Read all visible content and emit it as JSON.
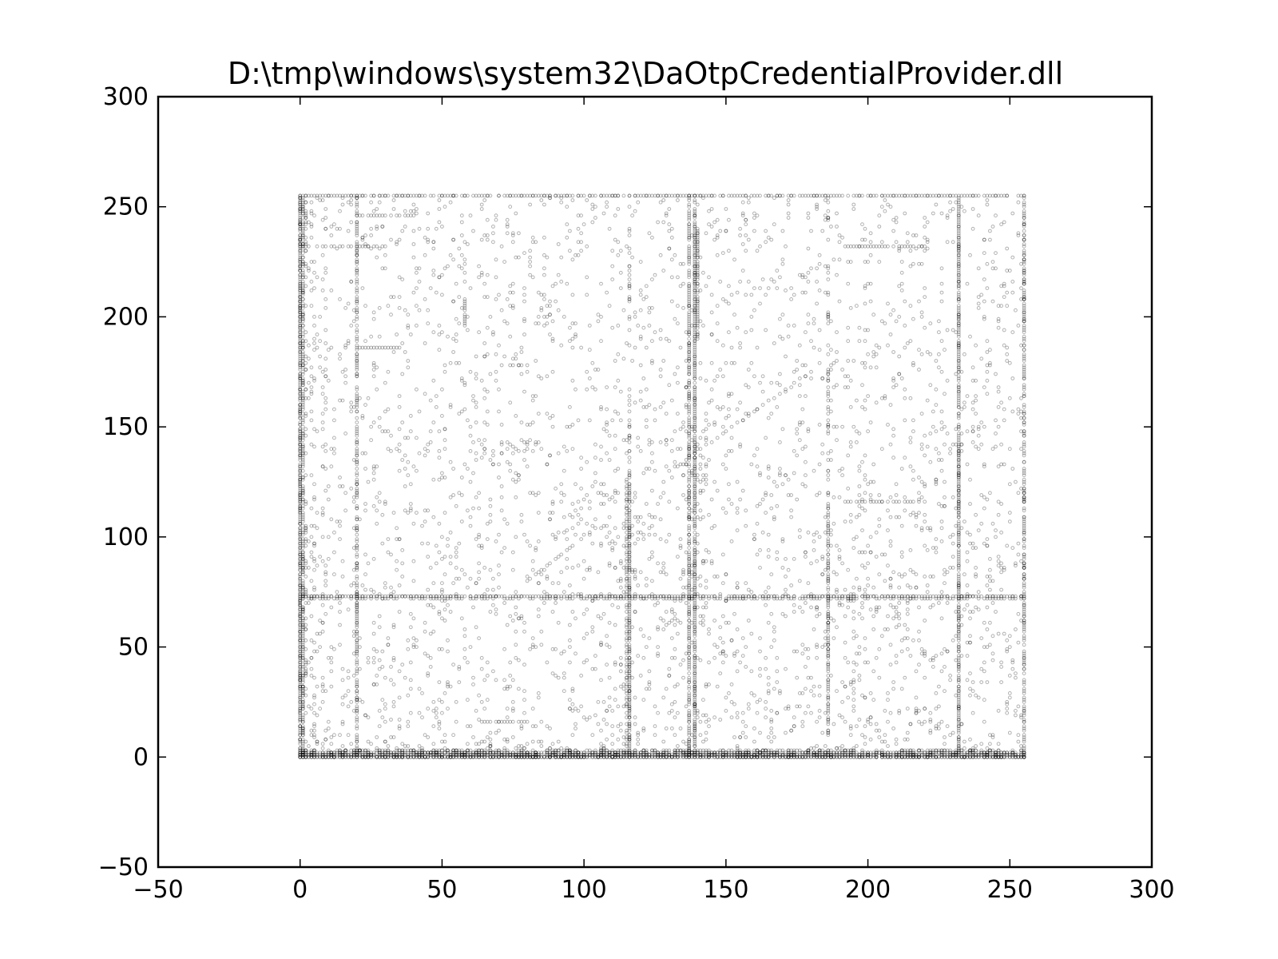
{
  "chart_data": {
    "type": "scatter",
    "title": "D:\\tmp\\windows\\system32\\DaOtpCredentialProvider.dll",
    "xlabel": "",
    "ylabel": "",
    "xlim": [
      -50,
      300
    ],
    "ylim": [
      -50,
      300
    ],
    "xticks": [
      -50,
      0,
      50,
      100,
      150,
      200,
      250,
      300
    ],
    "yticks": [
      -50,
      0,
      50,
      100,
      150,
      200,
      250,
      300
    ],
    "xtick_labels": [
      "−50",
      "0",
      "50",
      "100",
      "150",
      "200",
      "250",
      "300"
    ],
    "ytick_labels": [
      "−50",
      "0",
      "50",
      "100",
      "150",
      "200",
      "250",
      "300"
    ],
    "grid": false,
    "legend": "none",
    "marker": "hollow circle",
    "marker_color": "#000000",
    "marker_opacity": 0.3,
    "domain": {
      "x": [
        0,
        255
      ],
      "y": [
        0,
        255
      ]
    },
    "dense_rows_y": [
      0,
      1,
      2,
      3,
      73,
      255
    ],
    "dense_cols_x": [
      0,
      1,
      2,
      20,
      116,
      137,
      139,
      186,
      232,
      255
    ],
    "segments": [
      {
        "x0": 0,
        "x1": 255,
        "y0": 73,
        "y1": 73,
        "step": 0.7
      },
      {
        "x0": 0,
        "x1": 255,
        "y0": 72,
        "y1": 72,
        "step": 1.3
      },
      {
        "x0": 0,
        "x1": 255,
        "y0": 255,
        "y1": 255,
        "step": 0.8
      },
      {
        "x0": 0,
        "x1": 255,
        "y0": 0,
        "y1": 0,
        "step": 0.5
      },
      {
        "x0": 0,
        "x1": 255,
        "y0": 1,
        "y1": 1,
        "step": 0.7
      },
      {
        "x0": 0,
        "x1": 255,
        "y0": 2,
        "y1": 2,
        "step": 1.0
      },
      {
        "x0": 0,
        "x1": 0,
        "y0": 0,
        "y1": 255,
        "step": 0.7
      },
      {
        "x0": 1,
        "x1": 1,
        "y0": 0,
        "y1": 255,
        "step": 1.2
      },
      {
        "x0": 20,
        "x1": 20,
        "y0": 0,
        "y1": 255,
        "step": 1.3
      },
      {
        "x0": 116,
        "x1": 116,
        "y0": 0,
        "y1": 130,
        "step": 0.8
      },
      {
        "x0": 115,
        "x1": 115,
        "y0": 0,
        "y1": 125,
        "step": 1.5
      },
      {
        "x0": 137,
        "x1": 137,
        "y0": 0,
        "y1": 255,
        "step": 1.2
      },
      {
        "x0": 139,
        "x1": 139,
        "y0": 0,
        "y1": 255,
        "step": 0.9
      },
      {
        "x0": 140,
        "x1": 140,
        "y0": 190,
        "y1": 240,
        "step": 0.8
      },
      {
        "x0": 186,
        "x1": 186,
        "y0": 10,
        "y1": 115,
        "step": 1.2
      },
      {
        "x0": 232,
        "x1": 232,
        "y0": 0,
        "y1": 255,
        "step": 0.9
      },
      {
        "x0": 255,
        "x1": 255,
        "y0": 0,
        "y1": 255,
        "step": 1.3
      },
      {
        "x0": 192,
        "x1": 220,
        "y0": 232,
        "y1": 232,
        "step": 1.0
      },
      {
        "x0": 192,
        "x1": 220,
        "y0": 116,
        "y1": 116,
        "step": 1.2
      },
      {
        "x0": 20,
        "x1": 35,
        "y0": 186,
        "y1": 186,
        "step": 1.0
      },
      {
        "x0": 20,
        "x1": 40,
        "y0": 246,
        "y1": 246,
        "step": 1.0
      },
      {
        "x0": 64,
        "x1": 80,
        "y0": 16,
        "y1": 16,
        "step": 1.0
      },
      {
        "x0": 0,
        "x1": 30,
        "y0": 232,
        "y1": 232,
        "step": 1.5
      },
      {
        "x0": 58,
        "x1": 58,
        "y0": 196,
        "y1": 208,
        "step": 1.0
      }
    ],
    "clusters": [
      {
        "x0": 96,
        "x1": 120,
        "y0": 96,
        "y1": 122,
        "step": 3,
        "alt": 4
      },
      {
        "x0": 64,
        "x1": 80,
        "y0": 132,
        "y1": 142,
        "step": 3,
        "alt": 2
      },
      {
        "x0": 136,
        "x1": 143,
        "y0": 60,
        "y1": 150,
        "step": 2,
        "alt": 4
      },
      {
        "x0": 0,
        "x1": 8,
        "y0": 0,
        "y1": 255,
        "step": 4,
        "alt": 4
      },
      {
        "x0": 192,
        "x1": 218,
        "y0": 64,
        "y1": 78,
        "step": 3,
        "alt": 3
      }
    ],
    "diagonals": [
      {
        "x0": 130,
        "y0": 130,
        "x1": 180,
        "y1": 175,
        "n": 28
      },
      {
        "x0": 80,
        "y0": 80,
        "x1": 95,
        "y1": 95,
        "n": 12
      }
    ],
    "scatter_density": 5200,
    "seed": 7
  }
}
